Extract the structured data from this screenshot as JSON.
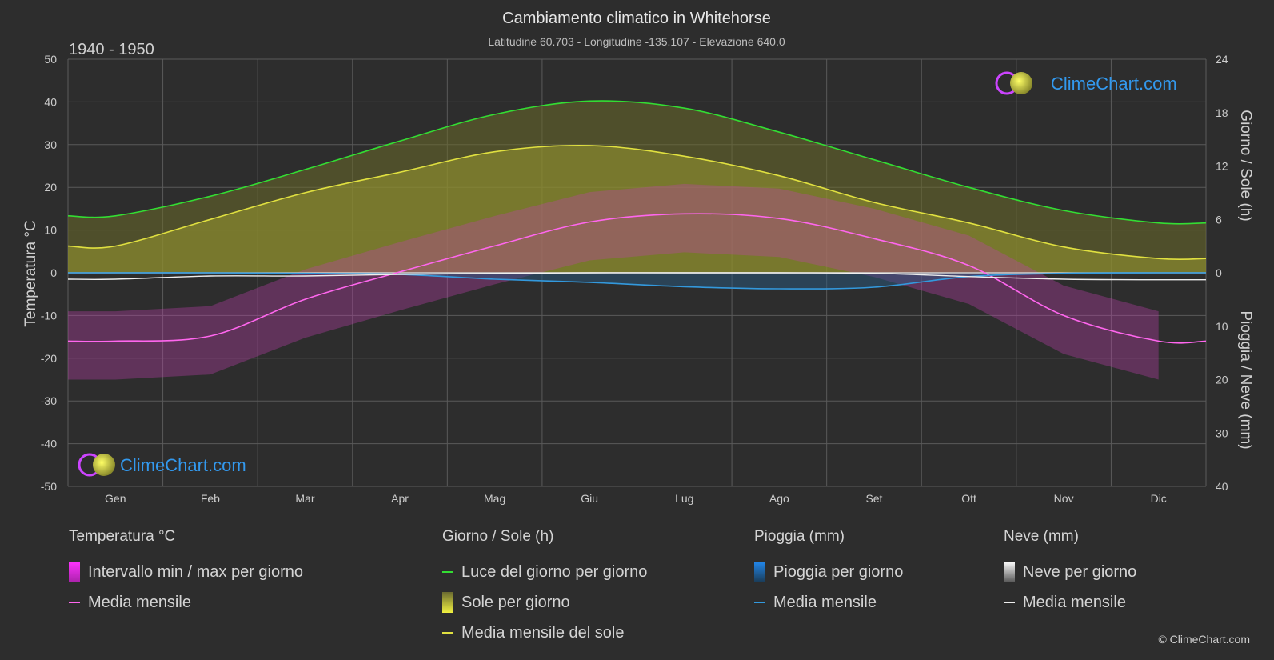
{
  "header": {
    "title": "Cambiamento climatico in Whitehorse",
    "subtitle": "Latitudine 60.703 - Longitudine -135.107 - Elevazione 640.0",
    "period": "1940 - 1950"
  },
  "brand": {
    "name": "ClimeChart.com",
    "copyright": "© ClimeChart.com"
  },
  "axes": {
    "left_label": "Temperatura °C",
    "right_top_label": "Giorno / Sole (h)",
    "right_bottom_label": "Pioggia / Neve (mm)"
  },
  "chart_data": {
    "type": "line",
    "categories": [
      "Gen",
      "Feb",
      "Mar",
      "Apr",
      "Mag",
      "Giu",
      "Lug",
      "Ago",
      "Set",
      "Ott",
      "Nov",
      "Dic"
    ],
    "temp_axis": {
      "ylim": [
        -50,
        50
      ],
      "ticks": [
        50,
        40,
        30,
        20,
        10,
        0,
        -10,
        -20,
        -30,
        -40,
        -50
      ]
    },
    "sun_axis": {
      "ylim": [
        0,
        24
      ],
      "ticks": [
        24,
        18,
        12,
        6,
        0
      ]
    },
    "precip_axis": {
      "ylim": [
        0,
        40
      ],
      "ticks": [
        0,
        10,
        20,
        30,
        40
      ],
      "inverted": true
    },
    "series": [
      {
        "name": "Luce del giorno per giorno",
        "axis": "sun",
        "color": "#33dd33",
        "values": [
          6.4,
          8.6,
          11.6,
          14.8,
          17.8,
          19.3,
          18.5,
          15.8,
          12.7,
          9.6,
          7.0,
          5.6
        ]
      },
      {
        "name": "Media mensile del sole",
        "axis": "sun",
        "color": "#e0e040",
        "values": [
          3.0,
          6.0,
          9.0,
          11.3,
          13.6,
          14.3,
          13.1,
          10.9,
          7.9,
          5.6,
          2.9,
          1.6
        ]
      },
      {
        "name": "Temperatura media mensile",
        "axis": "temp",
        "color": "#ff66ee",
        "values": [
          -16.0,
          -14.8,
          -6.2,
          0.2,
          6.3,
          11.9,
          13.8,
          12.7,
          8.0,
          1.7,
          -10.0,
          -16.0
        ]
      },
      {
        "name": "Pioggia media mensile",
        "axis": "precip",
        "color": "#3399dd",
        "values": [
          0.0,
          0.0,
          0.1,
          0.3,
          1.2,
          1.8,
          2.6,
          3.0,
          2.7,
          0.7,
          0.1,
          0.0
        ]
      },
      {
        "name": "Neve media mensile",
        "axis": "precip",
        "color": "#eeeeee",
        "values": [
          1.2,
          0.6,
          0.6,
          0.3,
          0.1,
          0.0,
          0.0,
          0.0,
          0.1,
          0.7,
          1.2,
          1.3
        ]
      }
    ]
  },
  "legend": {
    "temperature": {
      "title": "Temperatura °C",
      "items": [
        "Intervallo min / max per giorno",
        "Media mensile"
      ]
    },
    "sun": {
      "title": "Giorno / Sole (h)",
      "items": [
        "Luce del giorno per giorno",
        "Sole per giorno",
        "Media mensile del sole"
      ]
    },
    "rain": {
      "title": "Pioggia (mm)",
      "items": [
        "Pioggia per giorno",
        "Media mensile"
      ]
    },
    "snow": {
      "title": "Neve (mm)",
      "items": [
        "Neve per giorno",
        "Media mensile"
      ]
    }
  },
  "colors": {
    "background": "#2d2d2d",
    "grid": "#5a5a5a",
    "daylight": "#33dd33",
    "sun": "#e0e040",
    "temp": "#ff66ee",
    "rain": "#3399dd",
    "snow": "#eeeeee"
  }
}
